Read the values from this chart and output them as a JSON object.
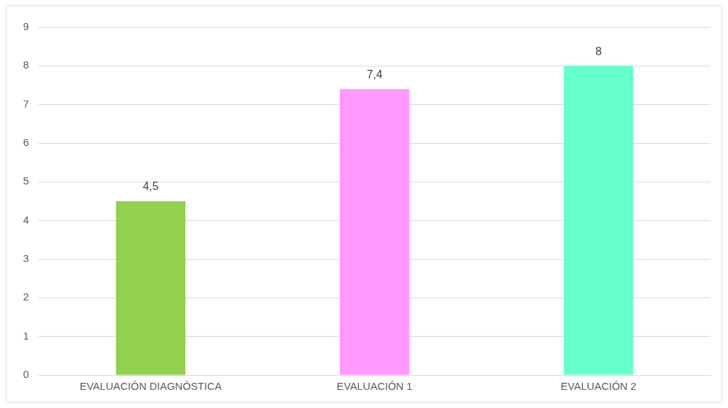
{
  "chart_data": {
    "type": "bar",
    "categories": [
      "EVALUACIÓN DIAGNÓSTICA",
      "EVALUACIÓN 1",
      "EVALUACIÓN 2"
    ],
    "values": [
      4.5,
      7.4,
      8
    ],
    "colors": [
      "#92d050",
      "#ff99ff",
      "#66ffcc"
    ],
    "value_labels": [
      "4,5",
      "7,4",
      "8"
    ],
    "ylim": [
      0,
      9
    ],
    "yticks": [
      0,
      1,
      2,
      3,
      4,
      5,
      6,
      7,
      8,
      9
    ],
    "grid": "y",
    "legend": false
  }
}
